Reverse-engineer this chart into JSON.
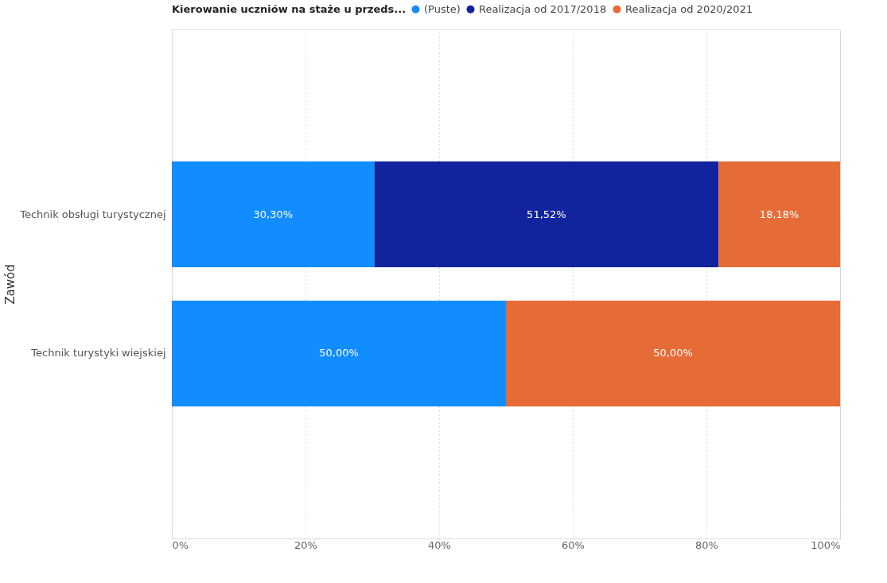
{
  "chart_data": {
    "type": "bar",
    "orientation": "horizontal",
    "stacked": true,
    "legend_title": "Kierowanie uczniów na staże u przeds...",
    "ylabel": "Zawód",
    "categories": [
      "Technik obsługi turystycznej",
      "Technik turystyki wiejskiej"
    ],
    "series": [
      {
        "name": "(Puste)",
        "color": "#118dff",
        "values": [
          30.3,
          50.0
        ],
        "value_labels": [
          "30,30%",
          "50,00%"
        ]
      },
      {
        "name": "Realizacja od 2017/2018",
        "color": "#12239e",
        "values": [
          51.52,
          null
        ],
        "value_labels": [
          "51,52%",
          null
        ]
      },
      {
        "name": "Realizacja od 2020/2021",
        "color": "#e66c37",
        "values": [
          18.18,
          50.0
        ],
        "value_labels": [
          "18,18%",
          "50,00%"
        ]
      }
    ],
    "xlim": [
      0,
      100
    ],
    "xticks": [
      {
        "value": 0,
        "label": "0%"
      },
      {
        "value": 20,
        "label": "20%"
      },
      {
        "value": 40,
        "label": "40%"
      },
      {
        "value": 60,
        "label": "60%"
      },
      {
        "value": 80,
        "label": "80%"
      },
      {
        "value": 100,
        "label": "100%"
      }
    ],
    "grid": "x",
    "legend": "top"
  }
}
